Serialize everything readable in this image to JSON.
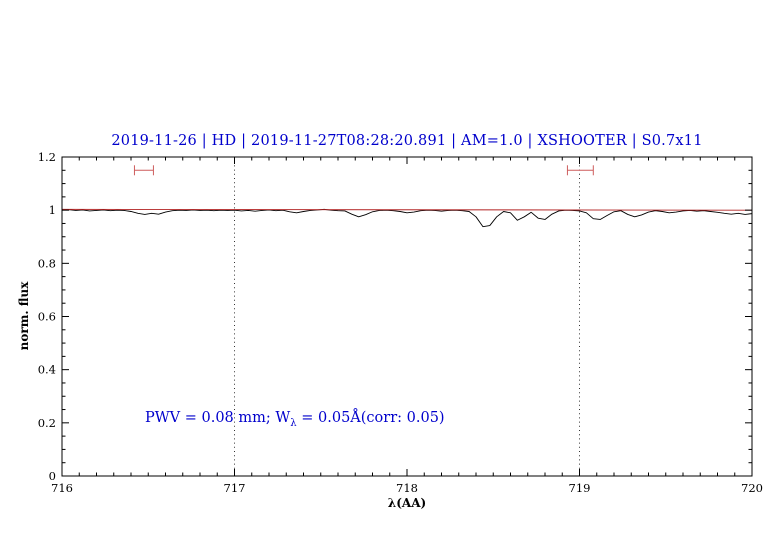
{
  "colors": {
    "title": "#0000cc",
    "annotation": "#0000cc",
    "continuum": "#b22222",
    "marker": "#cd5c5c",
    "frame": "#000000",
    "vline": "#000000"
  },
  "annotation": {
    "pre": "PWV = 0.08 mm; W",
    "sub": "λ",
    "post": " = 0.05Å(corr: 0.05)"
  },
  "chart_data": {
    "type": "line",
    "title": "2019-11-26 | HD | 2019-11-27T08:28:20.891 | AM=1.0 | XSHOOTER | S0.7x11",
    "xlabel": "λ(AA)",
    "ylabel": "norm. flux",
    "xlim": [
      716,
      720
    ],
    "ylim": [
      0,
      1.2
    ],
    "xticks": [
      716,
      717,
      718,
      719,
      720
    ],
    "xtick_labels": [
      "716",
      "717",
      "718",
      "719",
      "720"
    ],
    "yticks": [
      0,
      0.2,
      0.4,
      0.6,
      0.8,
      1,
      1.2
    ],
    "ytick_labels": [
      "0",
      "0.2",
      "0.4",
      "0.6",
      "0.8",
      "1",
      "1.2"
    ],
    "x_minor_step": 0.1,
    "y_minor_step": 0.05,
    "grid": false,
    "legend": "none",
    "vlines": [
      717,
      719
    ],
    "vline_style": "dotted",
    "series": [
      {
        "name": "spectrum",
        "color": "#000000",
        "x_start": 716,
        "x_step": 0.04,
        "y": [
          1.0,
          1.002,
          0.999,
          1.001,
          0.997,
          0.999,
          1.001,
          0.998,
          1.0,
          0.999,
          0.995,
          0.988,
          0.984,
          0.988,
          0.985,
          0.993,
          0.998,
          1.0,
          0.999,
          1.001,
          0.999,
          1.0,
          0.998,
          1.0,
          0.999,
          1.0,
          0.997,
          0.999,
          0.996,
          0.999,
          1.001,
          0.998,
          1.0,
          0.994,
          0.99,
          0.995,
          0.999,
          1.001,
          1.003,
          1.0,
          0.998,
          0.997,
          0.985,
          0.975,
          0.983,
          0.994,
          0.999,
          1.0,
          0.998,
          0.995,
          0.99,
          0.993,
          0.998,
          1.0,
          0.999,
          0.996,
          0.999,
          1.0,
          0.998,
          0.995,
          0.975,
          0.938,
          0.942,
          0.975,
          0.995,
          0.99,
          0.962,
          0.975,
          0.992,
          0.97,
          0.965,
          0.985,
          0.997,
          1.0,
          0.999,
          0.997,
          0.99,
          0.968,
          0.965,
          0.98,
          0.994,
          0.998,
          0.984,
          0.975,
          0.982,
          0.993,
          0.998,
          0.995,
          0.99,
          0.993,
          0.997,
          0.999,
          0.996,
          0.998,
          0.995,
          0.992,
          0.988,
          0.985,
          0.988,
          0.984,
          0.987
        ]
      },
      {
        "name": "continuum-fit",
        "color": "#b22222",
        "points": [
          [
            716,
            1.003
          ],
          [
            720,
            1.0
          ]
        ]
      }
    ],
    "markers": [
      {
        "name": "telluric-line-marker",
        "x1": 716.42,
        "x2": 716.53,
        "y": 1.15
      },
      {
        "name": "telluric-line-marker",
        "x1": 718.93,
        "x2": 719.08,
        "y": 1.15
      }
    ],
    "annotation_xy": [
      716.48,
      0.21
    ]
  }
}
